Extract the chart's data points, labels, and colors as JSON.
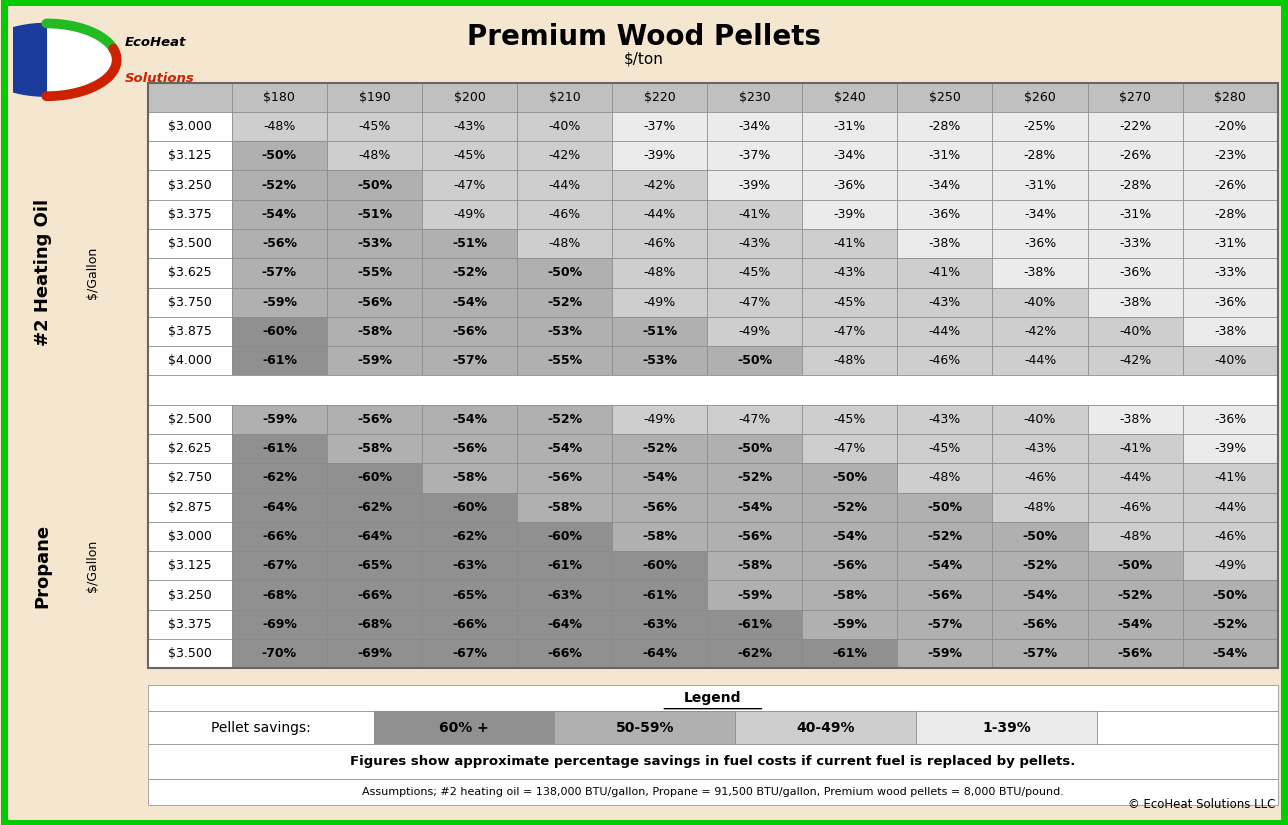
{
  "title": "Premium Wood Pellets",
  "subtitle": "$/ton",
  "outer_bg": "#F5E6D0",
  "border_color": "#00CC00",
  "col_headers": [
    "$180",
    "$190",
    "$200",
    "$210",
    "$220",
    "$230",
    "$240",
    "$250",
    "$260",
    "$270",
    "$280"
  ],
  "heating_oil_rows": {
    "label": "#2 Heating Oil",
    "unit": "$/Gallon",
    "prices": [
      "$3.000",
      "$3.125",
      "$3.250",
      "$3.375",
      "$3.500",
      "$3.625",
      "$3.750",
      "$3.875",
      "$4.000"
    ],
    "data": [
      [
        "-48%",
        "-45%",
        "-43%",
        "-40%",
        "-37%",
        "-34%",
        "-31%",
        "-28%",
        "-25%",
        "-22%",
        "-20%"
      ],
      [
        "-50%",
        "-48%",
        "-45%",
        "-42%",
        "-39%",
        "-37%",
        "-34%",
        "-31%",
        "-28%",
        "-26%",
        "-23%"
      ],
      [
        "-52%",
        "-50%",
        "-47%",
        "-44%",
        "-42%",
        "-39%",
        "-36%",
        "-34%",
        "-31%",
        "-28%",
        "-26%"
      ],
      [
        "-54%",
        "-51%",
        "-49%",
        "-46%",
        "-44%",
        "-41%",
        "-39%",
        "-36%",
        "-34%",
        "-31%",
        "-28%"
      ],
      [
        "-56%",
        "-53%",
        "-51%",
        "-48%",
        "-46%",
        "-43%",
        "-41%",
        "-38%",
        "-36%",
        "-33%",
        "-31%"
      ],
      [
        "-57%",
        "-55%",
        "-52%",
        "-50%",
        "-48%",
        "-45%",
        "-43%",
        "-41%",
        "-38%",
        "-36%",
        "-33%"
      ],
      [
        "-59%",
        "-56%",
        "-54%",
        "-52%",
        "-49%",
        "-47%",
        "-45%",
        "-43%",
        "-40%",
        "-38%",
        "-36%"
      ],
      [
        "-60%",
        "-58%",
        "-56%",
        "-53%",
        "-51%",
        "-49%",
        "-47%",
        "-44%",
        "-42%",
        "-40%",
        "-38%"
      ],
      [
        "-61%",
        "-59%",
        "-57%",
        "-55%",
        "-53%",
        "-50%",
        "-48%",
        "-46%",
        "-44%",
        "-42%",
        "-40%"
      ]
    ]
  },
  "propane_rows": {
    "label": "Propane",
    "unit": "$/Gallon",
    "prices": [
      "$2.500",
      "$2.625",
      "$2.750",
      "$2.875",
      "$3.000",
      "$3.125",
      "$3.250",
      "$3.375",
      "$3.500"
    ],
    "data": [
      [
        "-59%",
        "-56%",
        "-54%",
        "-52%",
        "-49%",
        "-47%",
        "-45%",
        "-43%",
        "-40%",
        "-38%",
        "-36%"
      ],
      [
        "-61%",
        "-58%",
        "-56%",
        "-54%",
        "-52%",
        "-50%",
        "-47%",
        "-45%",
        "-43%",
        "-41%",
        "-39%"
      ],
      [
        "-62%",
        "-60%",
        "-58%",
        "-56%",
        "-54%",
        "-52%",
        "-50%",
        "-48%",
        "-46%",
        "-44%",
        "-41%"
      ],
      [
        "-64%",
        "-62%",
        "-60%",
        "-58%",
        "-56%",
        "-54%",
        "-52%",
        "-50%",
        "-48%",
        "-46%",
        "-44%"
      ],
      [
        "-66%",
        "-64%",
        "-62%",
        "-60%",
        "-58%",
        "-56%",
        "-54%",
        "-52%",
        "-50%",
        "-48%",
        "-46%"
      ],
      [
        "-67%",
        "-65%",
        "-63%",
        "-61%",
        "-60%",
        "-58%",
        "-56%",
        "-54%",
        "-52%",
        "-50%",
        "-49%"
      ],
      [
        "-68%",
        "-66%",
        "-65%",
        "-63%",
        "-61%",
        "-59%",
        "-58%",
        "-56%",
        "-54%",
        "-52%",
        "-50%"
      ],
      [
        "-69%",
        "-68%",
        "-66%",
        "-64%",
        "-63%",
        "-61%",
        "-59%",
        "-57%",
        "-56%",
        "-54%",
        "-52%"
      ],
      [
        "-70%",
        "-69%",
        "-67%",
        "-66%",
        "-64%",
        "-62%",
        "-61%",
        "-59%",
        "-57%",
        "-56%",
        "-54%"
      ]
    ]
  },
  "figures_note": "Figures show approximate percentage savings in fuel costs if current fuel is replaced by pellets.",
  "assumptions_note": "Assumptions; #2 heating oil = 138,000 BTU/gallon, Propane = 91,500 BTU/gallon, Premium wood pellets = 8,000 BTU/pound.",
  "copyright": "© EcoHeat Solutions LLC",
  "color_60plus": "#909090",
  "color_50_59": "#B0B0B0",
  "color_40_49": "#CECECE",
  "color_1_39": "#EBEBEB",
  "header_bg": "#C0C0C0",
  "table_border": "#888888"
}
